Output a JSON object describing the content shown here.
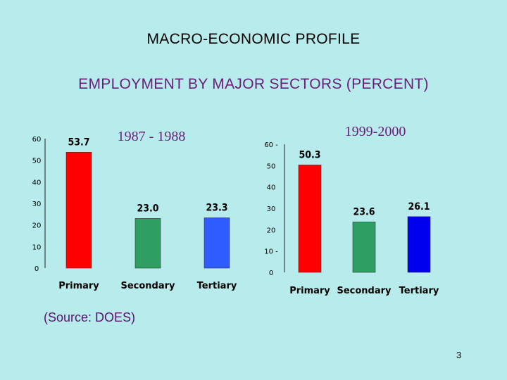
{
  "slide": {
    "heading": "MACRO-ECONOMIC PROFILE",
    "subheading": "EMPLOYMENT BY MAJOR SECTORS (PERCENT)",
    "source": "(Source: DOES)",
    "page_number": "3"
  },
  "colors": {
    "background": "#b8ecec",
    "primary": "#ff0000",
    "secondary": "#2e9e62",
    "tertiary_1987": "#2f5cff",
    "tertiary_1999": "#0000ee",
    "period_label": "#6b1d7a"
  },
  "chart_data": [
    {
      "type": "bar",
      "title": "1987 - 1988",
      "categories": [
        "Primary",
        "Secondary",
        "Tertiary"
      ],
      "values": [
        53.7,
        23.0,
        23.3
      ],
      "value_labels": [
        "53.7",
        "23.0",
        "23.3"
      ],
      "yticks": [
        "0",
        "10",
        "20",
        "30",
        "40",
        "50",
        "60"
      ],
      "ylim": [
        0,
        60
      ],
      "grid": false,
      "legend": "none"
    },
    {
      "type": "bar",
      "title": "1999-2000",
      "categories": [
        "Primary",
        "Secondary",
        "Tertiary"
      ],
      "values": [
        50.3,
        23.6,
        26.1
      ],
      "value_labels": [
        "50.3",
        "23.6",
        "26.1"
      ],
      "yticks": [
        "0",
        "10 -",
        "20",
        "30",
        "40",
        "50",
        "60 -"
      ],
      "ylim": [
        0,
        60
      ],
      "grid": false,
      "legend": "none"
    }
  ]
}
